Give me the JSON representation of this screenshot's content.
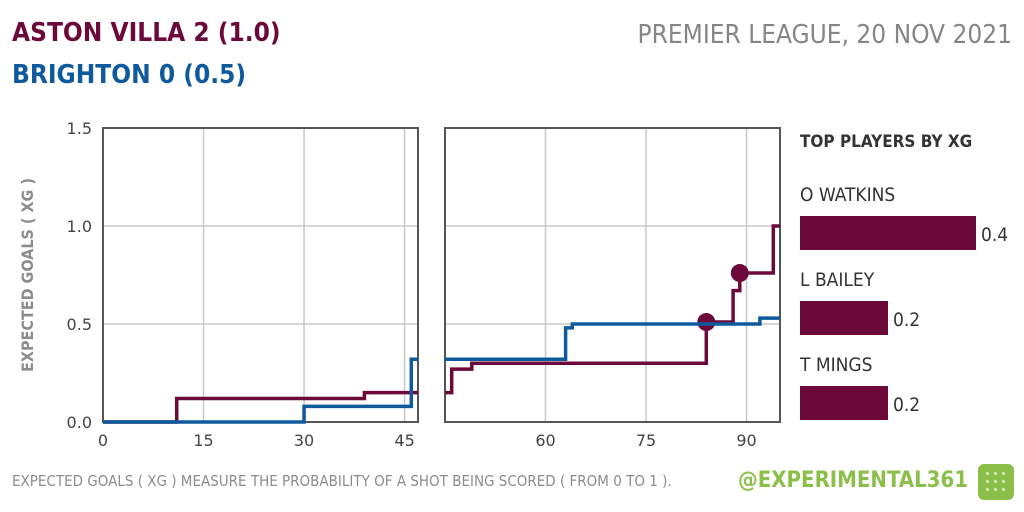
{
  "header": {
    "home_line": "ASTON VILLA  2  (1.0)",
    "away_line": "BRIGHTON  0  (0.5)",
    "competition_date": "PREMIER LEAGUE, 20 NOV 2021"
  },
  "footer": {
    "note": "EXPECTED GOALS ( XG ) MEASURE THE PROBABILITY OF A SHOT BEING SCORED ( FROM 0 TO 1 ).",
    "handle": "@EXPERIMENTAL361"
  },
  "colors": {
    "home": "#6b0a3a",
    "away": "#0f5a9c",
    "grid": "#c8c8c8",
    "frame": "#555555"
  },
  "chart_data": [
    {
      "type": "line",
      "title": "",
      "ylabel": "EXPECTED GOALS ( XG )",
      "ylim": [
        0,
        1.5
      ],
      "yticks": [
        "0.0",
        "0.5",
        "1.0",
        "1.5"
      ],
      "panels": [
        {
          "name": "first-half",
          "xlim": [
            0,
            47
          ],
          "xticks": [
            "0",
            "15",
            "30",
            "45"
          ],
          "xtick_values": [
            0,
            15,
            30,
            45
          ]
        },
        {
          "name": "second-half",
          "xlim": [
            45,
            95
          ],
          "xticks": [
            "60",
            "75",
            "90"
          ],
          "xtick_values": [
            60,
            75,
            90
          ]
        }
      ],
      "series": [
        {
          "name": "ASTON VILLA",
          "color": "#6b0a3a",
          "first_half": [
            [
              0,
              0
            ],
            [
              11,
              0.12
            ],
            [
              39,
              0.15
            ],
            [
              47,
              0.15
            ]
          ],
          "second_half": [
            [
              45,
              0.15
            ],
            [
              46,
              0.27
            ],
            [
              49,
              0.3
            ],
            [
              84,
              0.51
            ],
            [
              88,
              0.67
            ],
            [
              89,
              0.76
            ],
            [
              94,
              1.0
            ],
            [
              95,
              1.0
            ]
          ],
          "goals": [
            [
              84,
              0.51
            ],
            [
              89,
              0.76
            ]
          ]
        },
        {
          "name": "BRIGHTON",
          "color": "#0f5a9c",
          "first_half": [
            [
              0,
              0
            ],
            [
              30,
              0.08
            ],
            [
              46,
              0.32
            ],
            [
              47,
              0.32
            ]
          ],
          "second_half": [
            [
              45,
              0.32
            ],
            [
              63,
              0.48
            ],
            [
              64,
              0.5
            ],
            [
              92,
              0.53
            ],
            [
              95,
              0.53
            ]
          ],
          "goals": []
        }
      ]
    },
    {
      "type": "bar",
      "title": "TOP PLAYERS BY XG",
      "categories": [
        "O WATKINS",
        "L BAILEY",
        "T MINGS"
      ],
      "values": [
        0.4,
        0.2,
        0.2
      ],
      "value_labels": [
        "0.4",
        "0.2",
        "0.2"
      ],
      "color": "#6b0a3a"
    }
  ]
}
